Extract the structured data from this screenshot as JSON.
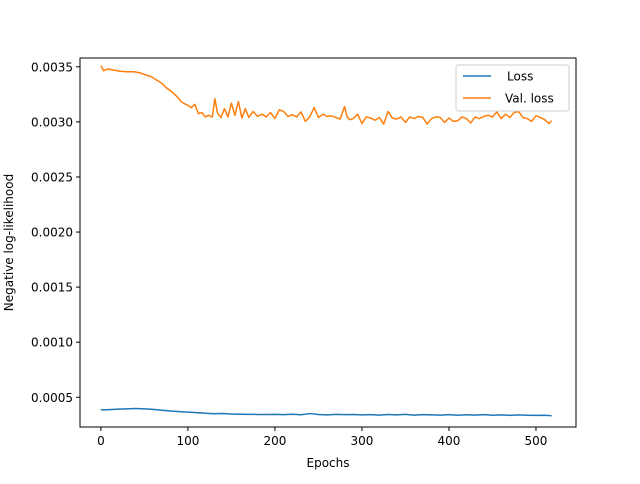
{
  "chart_data": {
    "type": "line",
    "xlabel": "Epochs",
    "ylabel": "Negative log-likelihood",
    "xlim": [
      -24,
      546
    ],
    "ylim": [
      0.00023,
      0.00358
    ],
    "xticks": [
      0,
      100,
      200,
      300,
      400,
      500
    ],
    "yticks": [
      0.0005,
      0.001,
      0.0015,
      0.002,
      0.0025,
      0.003,
      0.0035
    ],
    "ytick_labels": [
      "0.0005",
      "0.0010",
      "0.0015",
      "0.0020",
      "0.0025",
      "0.0030",
      "0.0035"
    ],
    "grid": false,
    "legend_position": "top-right",
    "series": [
      {
        "name": "Loss",
        "color": "#1f77b4",
        "x": [
          0,
          10,
          20,
          30,
          40,
          50,
          60,
          70,
          80,
          90,
          100,
          110,
          120,
          130,
          140,
          150,
          160,
          170,
          180,
          190,
          200,
          210,
          220,
          230,
          240,
          250,
          260,
          270,
          280,
          290,
          300,
          310,
          320,
          330,
          340,
          350,
          360,
          370,
          380,
          390,
          400,
          410,
          420,
          430,
          440,
          450,
          460,
          470,
          480,
          490,
          500,
          510,
          518
        ],
        "values": [
          0.000385,
          0.000388,
          0.000392,
          0.000395,
          0.000398,
          0.000395,
          0.00039,
          0.000382,
          0.000375,
          0.00037,
          0.000365,
          0.00036,
          0.000355,
          0.00035,
          0.000352,
          0.000348,
          0.000346,
          0.000345,
          0.000344,
          0.000343,
          0.000345,
          0.000342,
          0.000346,
          0.000341,
          0.000352,
          0.000343,
          0.00034,
          0.000345,
          0.000342,
          0.000344,
          0.00034,
          0.000342,
          0.000338,
          0.000343,
          0.00034,
          0.000345,
          0.000338,
          0.000342,
          0.00034,
          0.000338,
          0.000342,
          0.000337,
          0.000341,
          0.000338,
          0.000342,
          0.000337,
          0.00034,
          0.000336,
          0.00034,
          0.000337,
          0.000335,
          0.000337,
          0.000332
        ]
      },
      {
        "name": "Val. loss",
        "color": "#ff7f0e",
        "x": [
          0,
          3,
          8,
          15,
          22,
          30,
          38,
          45,
          52,
          58,
          64,
          70,
          76,
          82,
          88,
          92,
          96,
          100,
          104,
          108,
          112,
          116,
          120,
          124,
          128,
          131,
          134,
          138,
          142,
          146,
          150,
          154,
          158,
          162,
          166,
          170,
          175,
          180,
          185,
          190,
          195,
          200,
          205,
          210,
          215,
          220,
          225,
          230,
          235,
          240,
          245,
          250,
          255,
          260,
          265,
          270,
          275,
          280,
          283,
          286,
          290,
          295,
          300,
          305,
          310,
          315,
          320,
          325,
          330,
          335,
          340,
          345,
          350,
          355,
          360,
          365,
          370,
          375,
          380,
          385,
          390,
          395,
          400,
          405,
          410,
          415,
          420,
          425,
          430,
          435,
          440,
          445,
          450,
          455,
          460,
          465,
          470,
          475,
          480,
          485,
          490,
          495,
          500,
          505,
          510,
          515,
          518
        ],
        "values": [
          0.00351,
          0.003465,
          0.00348,
          0.00347,
          0.00346,
          0.003455,
          0.003455,
          0.003445,
          0.003425,
          0.00341,
          0.00338,
          0.00335,
          0.003305,
          0.00327,
          0.003225,
          0.003185,
          0.003165,
          0.00315,
          0.00313,
          0.00316,
          0.003075,
          0.003085,
          0.003045,
          0.00306,
          0.003045,
          0.00321,
          0.00308,
          0.00304,
          0.00312,
          0.003045,
          0.00317,
          0.00306,
          0.003185,
          0.003035,
          0.00312,
          0.00304,
          0.003095,
          0.00305,
          0.00307,
          0.003045,
          0.003085,
          0.00303,
          0.00311,
          0.003095,
          0.00305,
          0.003065,
          0.003045,
          0.00309,
          0.003005,
          0.003045,
          0.00313,
          0.00304,
          0.00307,
          0.00305,
          0.003055,
          0.00304,
          0.003025,
          0.00314,
          0.003045,
          0.00302,
          0.00303,
          0.00307,
          0.002985,
          0.003045,
          0.003035,
          0.003015,
          0.00304,
          0.00298,
          0.003095,
          0.003035,
          0.003025,
          0.003045,
          0.002995,
          0.003045,
          0.00303,
          0.00305,
          0.00304,
          0.00298,
          0.00303,
          0.003045,
          0.00304,
          0.002995,
          0.003035,
          0.003005,
          0.00301,
          0.003045,
          0.00303,
          0.00299,
          0.003045,
          0.00303,
          0.00305,
          0.00306,
          0.003045,
          0.00309,
          0.00303,
          0.00307,
          0.00304,
          0.003085,
          0.003095,
          0.00304,
          0.00303,
          0.003005,
          0.003055,
          0.00304,
          0.00302,
          0.002985,
          0.00301
        ]
      }
    ]
  }
}
